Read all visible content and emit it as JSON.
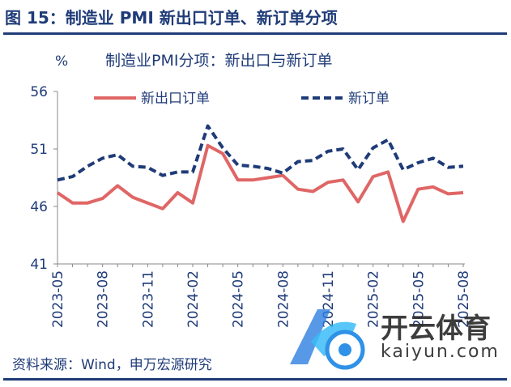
{
  "figure": {
    "title": "图 15：制造业 PMI 新出口订单、新订单分项",
    "source": "资料来源：Wind，申万宏源研究"
  },
  "watermark": {
    "brand": "开云体育",
    "url": "kaiyun.com"
  },
  "colors": {
    "title": "#1f3b78",
    "export": "#e06666",
    "neworder": "#1f3b78"
  },
  "chart_data": {
    "type": "line",
    "title": "制造业PMI分项：新出口与新订单",
    "ylabel": "%",
    "xlabel": "",
    "ylim": [
      41,
      56
    ],
    "yticks": [
      41,
      46,
      51,
      56
    ],
    "grid": false,
    "legend_placement": "top",
    "x": [
      "2023-05",
      "2023-06",
      "2023-07",
      "2023-08",
      "2023-09",
      "2023-10",
      "2023-11",
      "2023-12",
      "2024-01",
      "2024-02",
      "2024-03",
      "2024-04",
      "2024-05",
      "2024-06",
      "2024-07",
      "2024-08",
      "2024-09",
      "2024-10",
      "2024-11",
      "2024-12",
      "2025-01",
      "2025-02",
      "2025-03",
      "2025-04",
      "2025-05",
      "2025-06",
      "2025-07",
      "2025-08"
    ],
    "xtick_labels": [
      "2023-05",
      "2023-08",
      "2023-11",
      "2024-02",
      "2024-05",
      "2024-08",
      "2024-11",
      "2025-02",
      "2025-05",
      "2025-08"
    ],
    "series": [
      {
        "name": "新出口订单",
        "color": "#e06666",
        "style": "solid",
        "values": [
          47.2,
          46.3,
          46.3,
          46.7,
          47.8,
          46.8,
          46.3,
          45.8,
          47.2,
          46.3,
          51.3,
          50.6,
          48.3,
          48.3,
          48.5,
          48.7,
          47.5,
          47.3,
          48.1,
          48.3,
          46.4,
          48.6,
          49.0,
          44.7,
          47.5,
          47.7,
          47.1,
          47.2
        ]
      },
      {
        "name": "新订单",
        "color": "#1f3b78",
        "style": "dashed",
        "values": [
          48.3,
          48.6,
          49.5,
          50.2,
          50.5,
          49.5,
          49.4,
          48.7,
          49.0,
          49.0,
          53.0,
          51.1,
          49.6,
          49.5,
          49.3,
          48.9,
          49.9,
          50.0,
          50.8,
          51.0,
          49.2,
          51.1,
          51.8,
          49.2,
          49.8,
          50.2,
          49.4,
          49.5
        ]
      }
    ]
  }
}
